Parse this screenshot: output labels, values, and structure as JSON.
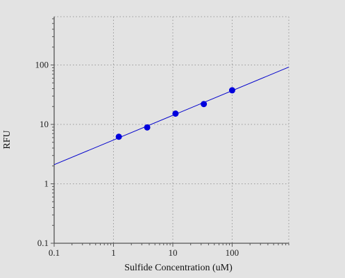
{
  "chart_data": {
    "type": "scatter",
    "title": "",
    "xlabel": "Sulfide Concentration (uM)",
    "ylabel": "RFU",
    "xscale": "log",
    "yscale": "log",
    "xlim": [
      0.1,
      900
    ],
    "ylim": [
      0.1,
      650
    ],
    "grid": true,
    "grid_style": "dotted",
    "x_tick_labels": [
      "0.1",
      "1",
      "10",
      "100"
    ],
    "y_tick_labels": [
      "0.1",
      "1",
      "10",
      "100"
    ],
    "series": [
      {
        "points": [
          {
            "x": 1.23,
            "y": 6.2
          },
          {
            "x": 3.7,
            "y": 8.9
          },
          {
            "x": 11.1,
            "y": 15.2
          },
          {
            "x": 33.3,
            "y": 22.0
          },
          {
            "x": 100,
            "y": 37.5
          }
        ],
        "marker_color": "#0000dd"
      }
    ],
    "fit_line": {
      "type": "linear",
      "x_start": 0.1,
      "x_end": 900,
      "y_start": 2.1,
      "y_end": 92,
      "color": "#0000cc"
    }
  }
}
